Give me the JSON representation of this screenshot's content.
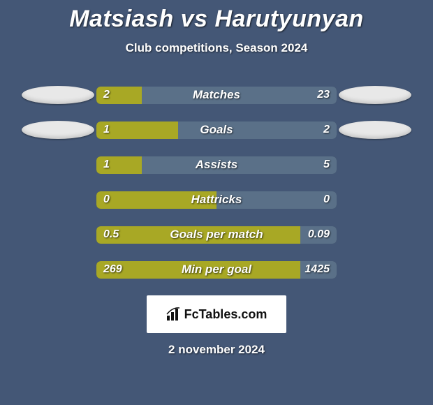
{
  "title": "Matsiash vs Harutyunyan",
  "subtitle": "Club competitions, Season 2024",
  "date": "2 november 2024",
  "logo": {
    "text": "FcTables.com"
  },
  "colors": {
    "background": "#445776",
    "bar_left": "#a8a825",
    "bar_right": "#5a7088",
    "bar_track": "#2f3e57",
    "ellipse": "#e8e8e8",
    "text": "#ffffff"
  },
  "rows": [
    {
      "label": "Matches",
      "left": "2",
      "right": "23",
      "left_pct": 19,
      "right_pct": 81,
      "show_ellipses": true
    },
    {
      "label": "Goals",
      "left": "1",
      "right": "2",
      "left_pct": 34,
      "right_pct": 66,
      "show_ellipses": true
    },
    {
      "label": "Assists",
      "left": "1",
      "right": "5",
      "left_pct": 19,
      "right_pct": 81,
      "show_ellipses": false
    },
    {
      "label": "Hattricks",
      "left": "0",
      "right": "0",
      "left_pct": 50,
      "right_pct": 50,
      "show_ellipses": false
    },
    {
      "label": "Goals per match",
      "left": "0.5",
      "right": "0.09",
      "left_pct": 85,
      "right_pct": 15,
      "show_ellipses": false
    },
    {
      "label": "Min per goal",
      "left": "269",
      "right": "1425",
      "left_pct": 85,
      "right_pct": 15,
      "show_ellipses": false
    }
  ]
}
